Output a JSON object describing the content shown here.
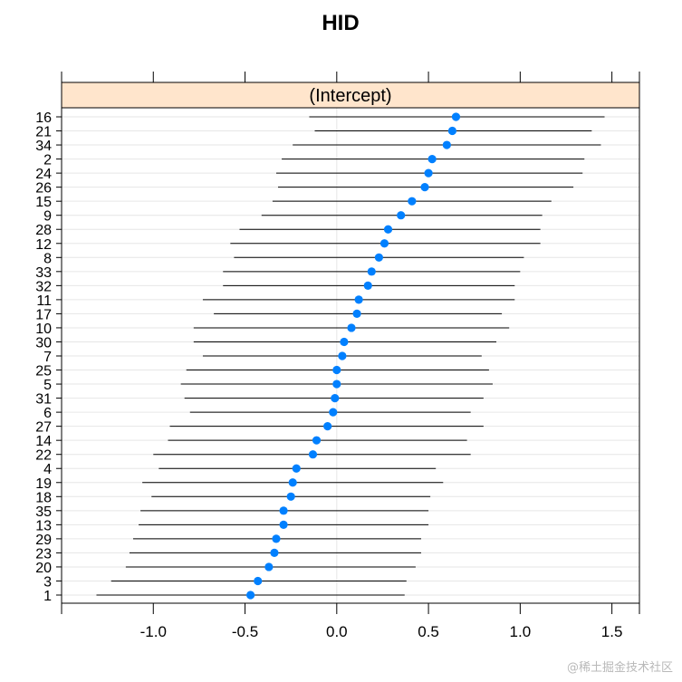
{
  "chart_data": {
    "type": "dotplot",
    "title": "HID",
    "panel_label": "(Intercept)",
    "xlim": [
      -1.5,
      1.65
    ],
    "xticks": [
      "-1.0",
      "-0.5",
      "0.0",
      "0.5",
      "1.0",
      "1.5"
    ],
    "xtick_values": [
      -1.0,
      -0.5,
      0.0,
      0.5,
      1.0,
      1.5
    ],
    "grid": true,
    "colors": {
      "point": "#0080ff",
      "interval": "#000000",
      "strip_bg": "#ffe5cc",
      "grid": "#e6e6e6"
    },
    "groups": [
      "16",
      "21",
      "34",
      "2",
      "24",
      "26",
      "15",
      "9",
      "28",
      "12",
      "8",
      "33",
      "32",
      "11",
      "17",
      "10",
      "30",
      "7",
      "25",
      "5",
      "31",
      "6",
      "27",
      "14",
      "22",
      "4",
      "19",
      "18",
      "35",
      "13",
      "29",
      "23",
      "20",
      "3",
      "1"
    ],
    "estimates": [
      0.65,
      0.63,
      0.6,
      0.52,
      0.5,
      0.48,
      0.41,
      0.35,
      0.28,
      0.26,
      0.23,
      0.19,
      0.17,
      0.12,
      0.11,
      0.08,
      0.04,
      0.03,
      0.0,
      0.0,
      -0.01,
      -0.02,
      -0.05,
      -0.11,
      -0.13,
      -0.22,
      -0.24,
      -0.25,
      -0.29,
      -0.29,
      -0.33,
      -0.34,
      -0.37,
      -0.43,
      -0.47
    ],
    "lower": [
      -0.15,
      -0.12,
      -0.24,
      -0.3,
      -0.33,
      -0.32,
      -0.35,
      -0.41,
      -0.53,
      -0.58,
      -0.56,
      -0.62,
      -0.62,
      -0.73,
      -0.67,
      -0.78,
      -0.78,
      -0.73,
      -0.82,
      -0.85,
      -0.83,
      -0.8,
      -0.91,
      -0.92,
      -1.0,
      -0.97,
      -1.06,
      -1.01,
      -1.07,
      -1.08,
      -1.11,
      -1.13,
      -1.15,
      -1.23,
      -1.31
    ],
    "upper": [
      1.46,
      1.39,
      1.44,
      1.35,
      1.34,
      1.29,
      1.17,
      1.12,
      1.11,
      1.11,
      1.02,
      1.0,
      0.97,
      0.97,
      0.9,
      0.94,
      0.87,
      0.79,
      0.83,
      0.85,
      0.8,
      0.73,
      0.8,
      0.71,
      0.73,
      0.54,
      0.58,
      0.51,
      0.5,
      0.5,
      0.46,
      0.46,
      0.43,
      0.38,
      0.37
    ]
  },
  "watermark": "@稀土掘金技术社区"
}
